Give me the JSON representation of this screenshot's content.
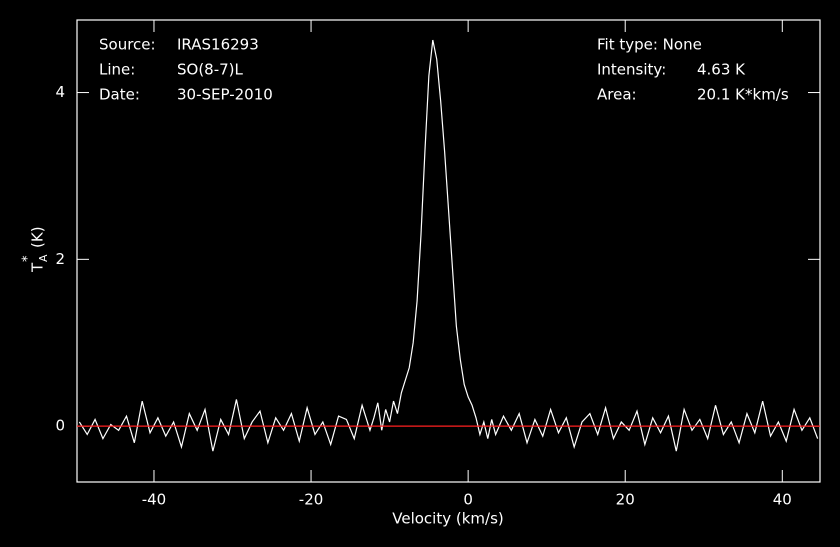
{
  "chart_data": {
    "type": "line",
    "info": {
      "source_label": "Source:",
      "source": "IRAS16293",
      "line_label": "Line:",
      "line": "SO(8-7)L",
      "date_label": "Date:",
      "date": "30-SEP-2010",
      "fit": "Fit type: None",
      "intensity_label": "Intensity:",
      "intensity": "4.63 K",
      "area_label": "Area:",
      "area": "20.1 K*km/s"
    },
    "xlabel": "Velocity (km/s)",
    "ylabel": "T",
    "ylabel_sub": "A",
    "ylabel_sup": "*",
    "ylabel_unit": "(K)",
    "xlim": [
      -49.8,
      44.8
    ],
    "ylim": [
      -0.67,
      4.87
    ],
    "xticks": [
      -40,
      -20,
      0,
      20,
      40
    ],
    "yticks": [
      0,
      2,
      4
    ],
    "baseline": 0,
    "baseline_color": "#ff2020",
    "series": [
      {
        "color": "#ffffff",
        "x": [
          -49.5,
          -48.5,
          -47.5,
          -46.5,
          -45.5,
          -44.5,
          -43.5,
          -42.5,
          -41.5,
          -40.5,
          -39.5,
          -38.5,
          -37.5,
          -36.5,
          -35.5,
          -34.5,
          -33.5,
          -32.5,
          -31.5,
          -30.5,
          -29.5,
          -28.5,
          -27.5,
          -26.5,
          -25.5,
          -24.5,
          -23.5,
          -22.5,
          -21.5,
          -20.5,
          -19.5,
          -18.5,
          -17.5,
          -16.5,
          -15.5,
          -14.5,
          -13.5,
          -12.5,
          -12,
          -11.5,
          -11,
          -10.5,
          -10,
          -9.5,
          -9,
          -8.5,
          -8,
          -7.5,
          -7,
          -6.5,
          -6,
          -5.5,
          -5,
          -4.5,
          -4,
          -3.5,
          -3,
          -2.5,
          -2,
          -1.5,
          -1,
          -0.5,
          0,
          0.5,
          1,
          1.5,
          2,
          2.5,
          3,
          3.5,
          4.5,
          5.5,
          6.5,
          7.5,
          8.5,
          9.5,
          10.5,
          11.5,
          12.5,
          13.5,
          14.5,
          15.5,
          16.5,
          17.5,
          18.5,
          19.5,
          20.5,
          21.5,
          22.5,
          23.5,
          24.5,
          25.5,
          26.5,
          27.5,
          28.5,
          29.5,
          30.5,
          31.5,
          32.5,
          33.5,
          34.5,
          35.5,
          36.5,
          37.5,
          38.5,
          39.5,
          40.5,
          41.5,
          42.5,
          43.5,
          44.5
        ],
        "values": [
          0.05,
          -0.1,
          0.08,
          -0.15,
          0.02,
          -0.05,
          0.12,
          -0.2,
          0.3,
          -0.08,
          0.1,
          -0.12,
          0.05,
          -0.25,
          0.15,
          -0.05,
          0.2,
          -0.3,
          0.08,
          -0.1,
          0.32,
          -0.15,
          0.05,
          0.18,
          -0.2,
          0.1,
          -0.05,
          0.15,
          -0.18,
          0.22,
          -0.1,
          0.05,
          -0.22,
          0.12,
          0.08,
          -0.15,
          0.25,
          -0.05,
          0.1,
          0.28,
          -0.05,
          0.2,
          0.05,
          0.3,
          0.15,
          0.4,
          0.55,
          0.7,
          1.0,
          1.5,
          2.3,
          3.3,
          4.2,
          4.63,
          4.4,
          3.9,
          3.3,
          2.6,
          1.9,
          1.2,
          0.8,
          0.5,
          0.35,
          0.25,
          0.1,
          -0.1,
          0.05,
          -0.15,
          0.08,
          -0.1,
          0.12,
          -0.05,
          0.15,
          -0.2,
          0.08,
          -0.12,
          0.2,
          -0.08,
          0.1,
          -0.25,
          0.05,
          0.15,
          -0.1,
          0.22,
          -0.15,
          0.05,
          -0.05,
          0.18,
          -0.22,
          0.1,
          -0.08,
          0.12,
          -0.3,
          0.2,
          -0.05,
          0.08,
          -0.15,
          0.25,
          -0.1,
          0.05,
          -0.2,
          0.15,
          -0.08,
          0.3,
          -0.12,
          0.05,
          -0.18,
          0.2,
          -0.05,
          0.1,
          -0.15
        ]
      }
    ]
  }
}
